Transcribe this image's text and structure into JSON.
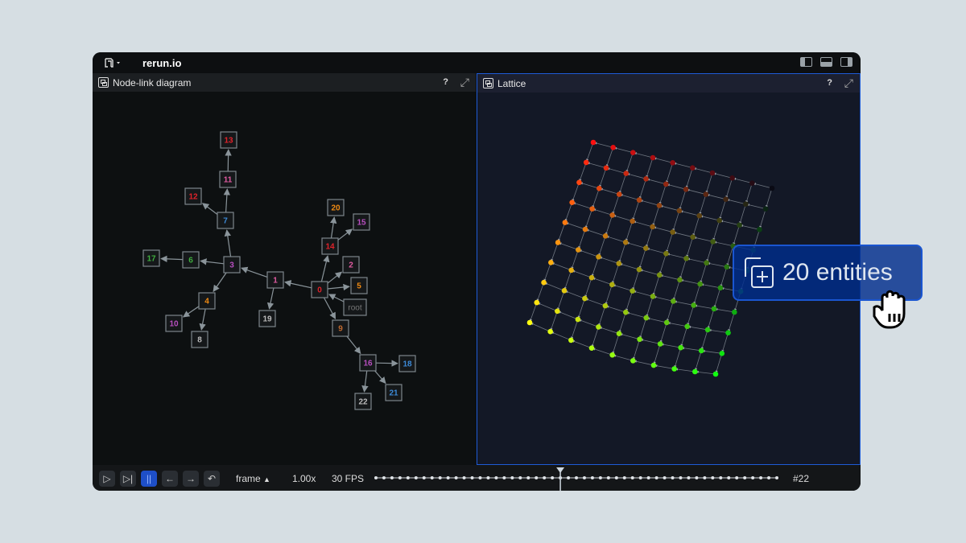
{
  "app": {
    "title": "rerun.io"
  },
  "panels": {
    "left": {
      "title": "Node-link diagram",
      "help": "?"
    },
    "right": {
      "title": "Lattice",
      "help": "?"
    }
  },
  "graph": {
    "nodes": [
      {
        "id": "13",
        "color": "#e0222a"
      },
      {
        "id": "11",
        "color": "#e05aa0"
      },
      {
        "id": "12",
        "color": "#e0222a"
      },
      {
        "id": "7",
        "color": "#3c8ad8"
      },
      {
        "id": "17",
        "color": "#3fae3f"
      },
      {
        "id": "6",
        "color": "#3fae3f"
      },
      {
        "id": "3",
        "color": "#b84fc0"
      },
      {
        "id": "1",
        "color": "#e05aa0"
      },
      {
        "id": "0",
        "color": "#e0222a"
      },
      {
        "id": "14",
        "color": "#e0222a"
      },
      {
        "id": "20",
        "color": "#f08a12"
      },
      {
        "id": "15",
        "color": "#b84fc0"
      },
      {
        "id": "2",
        "color": "#e05aa0"
      },
      {
        "id": "5",
        "color": "#f08a12"
      },
      {
        "id": "root",
        "color": "#777777"
      },
      {
        "id": "19",
        "color": "#bbbbbb"
      },
      {
        "id": "4",
        "color": "#f08a12"
      },
      {
        "id": "10",
        "color": "#b84fc0"
      },
      {
        "id": "8",
        "color": "#bbbbbb"
      },
      {
        "id": "9",
        "color": "#c06a30"
      },
      {
        "id": "16",
        "color": "#b84fc0"
      },
      {
        "id": "18",
        "color": "#3c8ad8"
      },
      {
        "id": "21",
        "color": "#3c8ad8"
      },
      {
        "id": "22",
        "color": "#bbbbbb"
      }
    ],
    "edges": [
      [
        "0",
        "1"
      ],
      [
        "1",
        "3"
      ],
      [
        "3",
        "7"
      ],
      [
        "7",
        "12"
      ],
      [
        "7",
        "11"
      ],
      [
        "11",
        "13"
      ],
      [
        "3",
        "6"
      ],
      [
        "6",
        "17"
      ],
      [
        "3",
        "4"
      ],
      [
        "4",
        "10"
      ],
      [
        "4",
        "8"
      ],
      [
        "1",
        "19"
      ],
      [
        "0",
        "14"
      ],
      [
        "14",
        "20"
      ],
      [
        "14",
        "15"
      ],
      [
        "0",
        "2"
      ],
      [
        "0",
        "5"
      ],
      [
        "root",
        "0"
      ],
      [
        "0",
        "9"
      ],
      [
        "9",
        "16"
      ],
      [
        "16",
        "18"
      ],
      [
        "16",
        "21"
      ],
      [
        "16",
        "22"
      ]
    ]
  },
  "lattice": {
    "rows": 10,
    "cols": 10,
    "corner_colors": {
      "top_left": "#ff1010",
      "top_right": "#0a0a14",
      "bottom_left": "#ffff10",
      "bottom_right": "#10ff10"
    }
  },
  "drag_overlay": {
    "label": "20 entities"
  },
  "timeline": {
    "timeline_name": "frame",
    "speed": "1.00x",
    "fps": "30 FPS",
    "current_frame": "#22",
    "progress": 0.46
  },
  "colors": {
    "accent": "#1e5bd6"
  }
}
